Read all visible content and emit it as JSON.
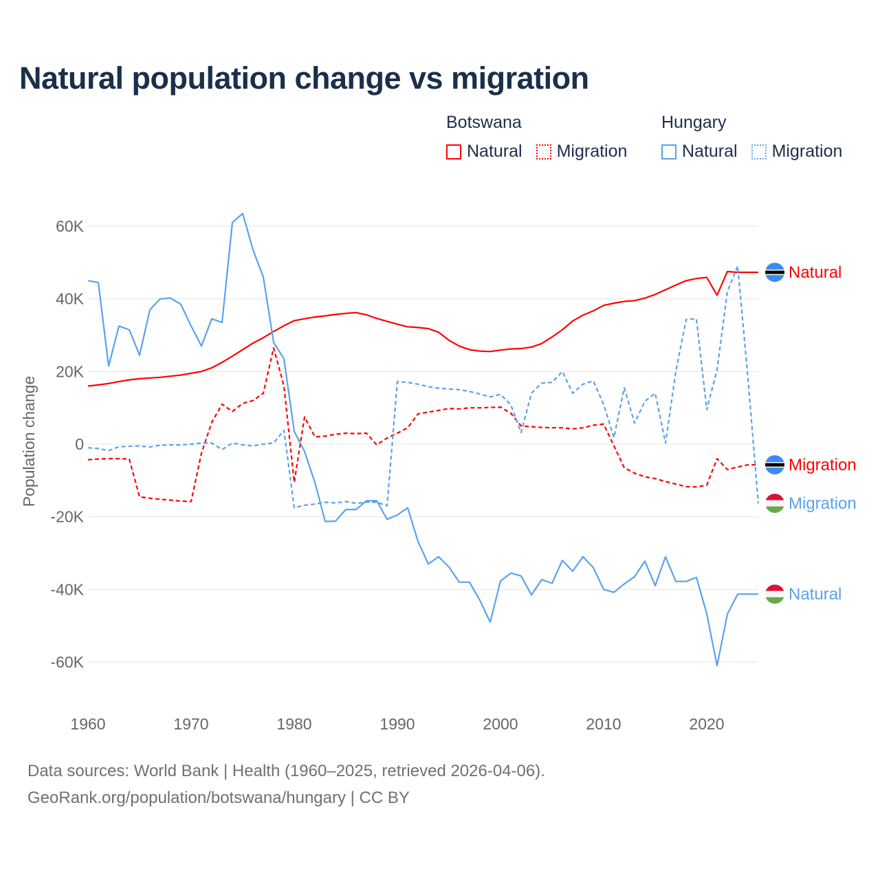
{
  "title": "Natural population change vs migration",
  "legend": [
    {
      "group": "Botswana",
      "items": [
        {
          "label": "Natural",
          "style": "solid",
          "color": "#ff0000"
        },
        {
          "label": "Migration",
          "style": "dotted",
          "color": "#ff0000"
        }
      ]
    },
    {
      "group": "Hungary",
      "items": [
        {
          "label": "Natural",
          "style": "solid",
          "color": "#5aa2ea"
        },
        {
          "label": "Migration",
          "style": "dotted",
          "color": "#5aa2ea"
        }
      ]
    }
  ],
  "footer": {
    "line1": "Data sources: World Bank | Health (1960–2025, retrieved 2026-04-06).",
    "line2": "GeoRank.org/population/botswana/hungary | CC BY"
  },
  "chart_data": {
    "type": "line",
    "title": "Natural population change vs migration",
    "xlabel": "",
    "ylabel": "Population change",
    "xlim": [
      1960,
      2025
    ],
    "ylim": [
      -70000,
      65000
    ],
    "x_ticks": [
      1960,
      1970,
      1980,
      1990,
      2000,
      2010,
      2020
    ],
    "y_ticks": [
      {
        "v": 60000,
        "label": "60K"
      },
      {
        "v": 40000,
        "label": "40K"
      },
      {
        "v": 20000,
        "label": "20K"
      },
      {
        "v": 0,
        "label": "0"
      },
      {
        "v": -20000,
        "label": "-20K"
      },
      {
        "v": -40000,
        "label": "-40K"
      },
      {
        "v": -60000,
        "label": "-60K"
      }
    ],
    "grid": true,
    "x_start": 1960,
    "series": [
      {
        "name": "Botswana Natural",
        "end_label": "Natural",
        "country": "botswana",
        "color": "#ff0000",
        "dash": false,
        "values": [
          16000,
          16300,
          16700,
          17200,
          17700,
          18000,
          18200,
          18400,
          18700,
          19000,
          19500,
          20000,
          21000,
          22500,
          24200,
          26000,
          27800,
          29300,
          31000,
          32600,
          34000,
          34500,
          35000,
          35300,
          35700,
          36000,
          36200,
          35600,
          34600,
          33800,
          33000,
          32300,
          32100,
          31800,
          30800,
          28600,
          27000,
          26000,
          25600,
          25500,
          25900,
          26200,
          26300,
          26700,
          27700,
          29500,
          31500,
          33900,
          35500,
          36700,
          38200,
          38800,
          39300,
          39500,
          40200,
          41200,
          42500,
          43800,
          45000,
          45600,
          45900,
          41000,
          47500,
          47300,
          47300,
          47300
        ]
      },
      {
        "name": "Botswana Migration",
        "end_label": "Migration",
        "country": "botswana",
        "color": "#ff0000",
        "dash": true,
        "values": [
          -4300,
          -4100,
          -4000,
          -4000,
          -4100,
          -14500,
          -14900,
          -15200,
          -15400,
          -15700,
          -15800,
          -2500,
          6000,
          11000,
          9000,
          11200,
          12000,
          14000,
          26500,
          16000,
          -10500,
          7500,
          2000,
          2200,
          2700,
          3000,
          2900,
          3000,
          -200,
          1700,
          3000,
          4500,
          8300,
          8800,
          9300,
          9800,
          9700,
          10000,
          10000,
          10100,
          10200,
          8500,
          5000,
          4800,
          4600,
          4500,
          4500,
          4200,
          4500,
          5200,
          5500,
          -500,
          -6500,
          -8000,
          -9000,
          -9500,
          -10300,
          -11000,
          -11700,
          -11800,
          -11300,
          -4000,
          -7000,
          -6300,
          -5700,
          -5700
        ]
      },
      {
        "name": "Hungary Natural",
        "end_label": "Natural",
        "country": "hungary",
        "color": "#5aa2ea",
        "dash": false,
        "values": [
          45000,
          44500,
          21500,
          32500,
          31500,
          24500,
          37000,
          40000,
          40200,
          38500,
          32500,
          27000,
          34500,
          33500,
          61000,
          63500,
          53500,
          46000,
          28000,
          23500,
          3500,
          -2000,
          -10500,
          -21300,
          -21200,
          -18000,
          -18000,
          -15600,
          -15600,
          -20700,
          -19500,
          -17500,
          -26800,
          -33000,
          -31000,
          -33800,
          -38000,
          -38000,
          -43000,
          -49000,
          -37700,
          -35500,
          -36300,
          -41500,
          -37300,
          -38300,
          -32000,
          -35000,
          -31000,
          -34000,
          -40000,
          -40800,
          -38500,
          -36500,
          -32200,
          -39000,
          -31000,
          -37800,
          -37800,
          -36700,
          -46700,
          -61000,
          -46800,
          -41300,
          -41300,
          -41300
        ]
      },
      {
        "name": "Hungary Migration",
        "end_label": "Migration",
        "country": "hungary",
        "color": "#5aa2ea",
        "dash": true,
        "values": [
          -1000,
          -1200,
          -1800,
          -700,
          -600,
          -500,
          -800,
          -300,
          -200,
          -200,
          0,
          300,
          300,
          -1500,
          300,
          -200,
          -500,
          0,
          300,
          3800,
          -17500,
          -16800,
          -16500,
          -16000,
          -16200,
          -15800,
          -16300,
          -16000,
          -16000,
          -17000,
          17200,
          17000,
          16500,
          15800,
          15400,
          15200,
          15000,
          14500,
          13800,
          13000,
          13700,
          10800,
          3200,
          14000,
          16800,
          17000,
          20000,
          14000,
          16500,
          17400,
          11000,
          1800,
          15500,
          5800,
          11800,
          14000,
          300,
          20000,
          34300,
          34500,
          9500,
          20500,
          42000,
          49000,
          18000,
          -16300
        ]
      }
    ]
  }
}
